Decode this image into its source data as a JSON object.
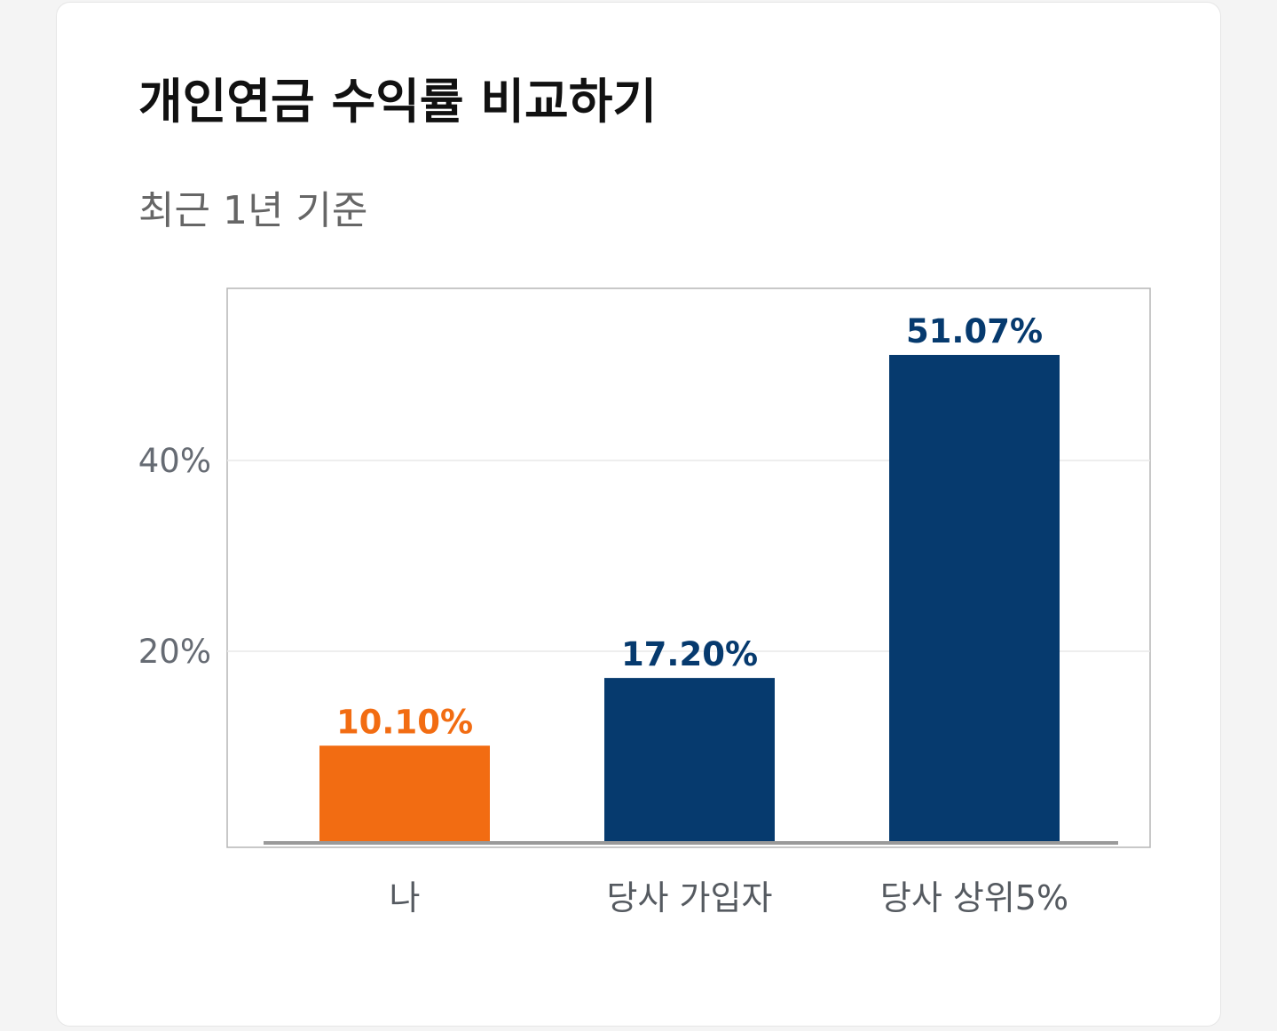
{
  "header": {
    "title": "개인연금 수익률 비교하기",
    "subtitle": "최근 1년 기준"
  },
  "colors": {
    "highlight": "#f26c12",
    "primary": "#063a6e",
    "grid": "#e8e8e8",
    "baseline": "#9a9a9a",
    "frame": "#b5b5b5"
  },
  "chart_data": {
    "type": "bar",
    "title": "개인연금 수익률 비교하기",
    "subtitle": "최근 1년 기준",
    "categories": [
      "나",
      "당사 가입자",
      "당사 상위5%"
    ],
    "values": [
      10.1,
      17.2,
      51.07
    ],
    "data_labels": [
      "10.10%",
      "17.20%",
      "51.07%"
    ],
    "bar_colors": [
      "#f26c12",
      "#063a6e",
      "#063a6e"
    ],
    "yticks": [
      20,
      40
    ],
    "ytick_labels": [
      "20%",
      "40%"
    ],
    "ylim": [
      0,
      58
    ],
    "grid": true,
    "xlabel": "",
    "ylabel": ""
  }
}
